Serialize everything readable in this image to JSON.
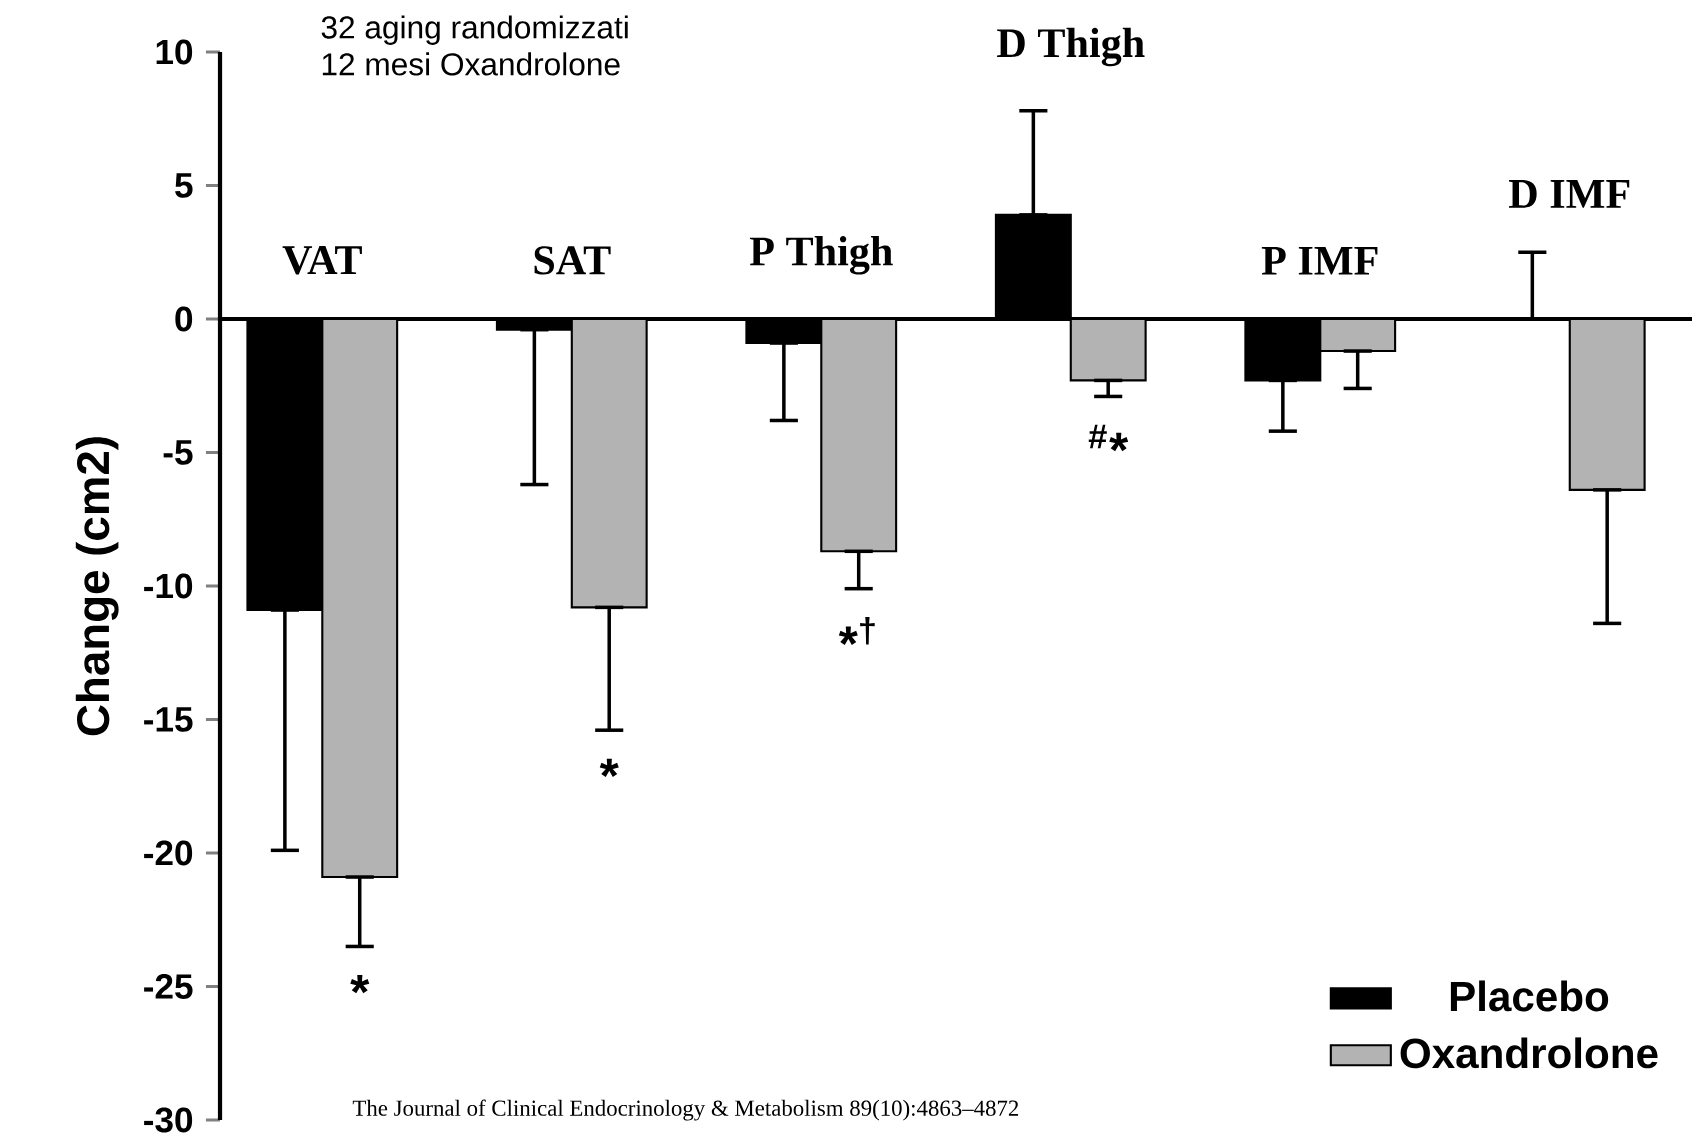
{
  "chart_data": {
    "type": "bar",
    "title": "32 aging randomizzati",
    "subtitle": "12 mesi Oxandrolone",
    "ylabel": "Change (cm2)",
    "categories": [
      "VAT",
      "SAT",
      "P Thigh",
      "D Thigh",
      "P IMF",
      "D IMF"
    ],
    "series": [
      {
        "name": "Placebo",
        "color": "#000000",
        "values": [
          -10.9,
          -0.4,
          -0.9,
          3.9,
          -2.3,
          0
        ],
        "errors": [
          [
            -19.9,
            -10.9
          ],
          [
            -6.2,
            -0.4
          ],
          [
            -3.8,
            -0.9
          ],
          [
            3.9,
            7.8
          ],
          [
            -4.2,
            -2.3
          ],
          [
            0,
            2.5
          ]
        ]
      },
      {
        "name": "Oxandrolone",
        "color": "#b3b3b3",
        "values": [
          -20.9,
          -10.8,
          -8.7,
          -2.3,
          -1.2,
          -6.4
        ],
        "errors": [
          [
            -23.5,
            -20.9
          ],
          [
            -15.4,
            -10.8
          ],
          [
            -10.1,
            -8.7
          ],
          [
            -2.9,
            -2.3
          ],
          [
            -2.6,
            -1.2
          ],
          [
            -11.4,
            -6.4
          ]
        ]
      }
    ],
    "ylim": [
      -30,
      10
    ],
    "yticks": [
      -30,
      -25,
      -20,
      -15,
      -10,
      -5,
      0,
      5,
      10
    ],
    "legend": "bottom right",
    "annotations": [
      "*",
      "*",
      "*$^{†}$",
      "$^{#}$*",
      "The Journal of Clinical Endocrinology & Metabolism 89(10):4863–4872"
    ]
  }
}
